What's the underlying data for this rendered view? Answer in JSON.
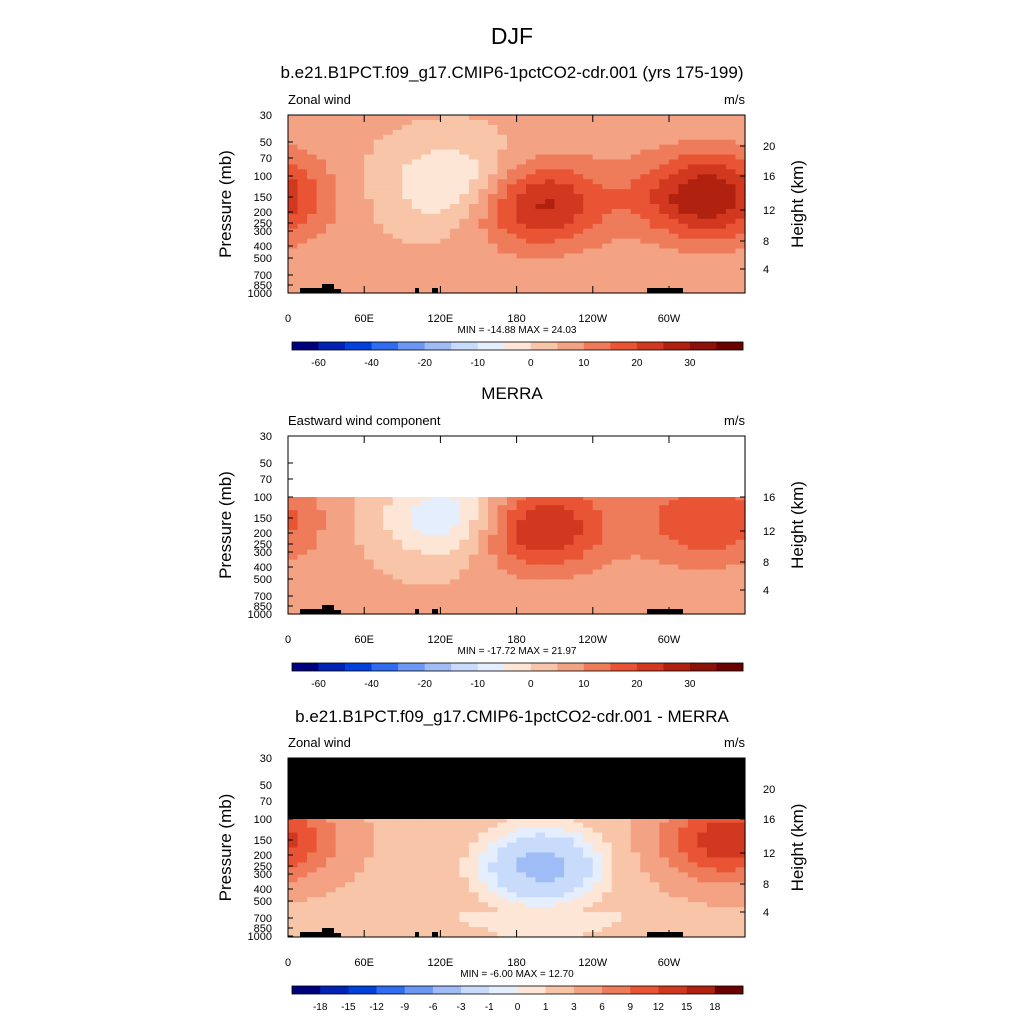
{
  "figure": {
    "season_title": "DJF"
  },
  "chart_data": [
    {
      "type": "heatmap",
      "title": "b.e21.B1PCT.f09_g17.CMIP6-1pctCO2-cdr.001 (yrs 175-199)",
      "left_label": "Zonal wind",
      "units": "m/s",
      "ylabel": "Pressure (mb)",
      "ylabel_right": "Height (km)",
      "y_ticks": [
        "30",
        "50",
        "70",
        "100",
        "150",
        "200",
        "250",
        "300",
        "400",
        "500",
        "700",
        "850",
        "1000"
      ],
      "y_right_ticks": [
        "20",
        "16",
        "12",
        "8",
        "4"
      ],
      "x_ticks": [
        "0",
        "60E",
        "120E",
        "180",
        "120W",
        "60W"
      ],
      "stats": "MIN = -14.88  MAX =  24.03",
      "min": -14.88,
      "max": 24.03,
      "colorbar_labels": [
        "-60",
        "-40",
        "-20",
        "-10",
        "0",
        "10",
        "20",
        "30"
      ],
      "features": [
        {
          "kind": "westerly jet core",
          "lon": 195,
          "pressure": 170,
          "value": 22
        },
        {
          "kind": "westerly jet core",
          "lon": 330,
          "pressure": 150,
          "value": 24
        },
        {
          "kind": "easterly region",
          "lon": 135,
          "pressure": 120,
          "value": -14
        }
      ]
    },
    {
      "type": "heatmap",
      "title": "MERRA",
      "left_label": "Eastward wind component",
      "units": "m/s",
      "ylabel": "Pressure (mb)",
      "ylabel_right": "Height (km)",
      "y_ticks": [
        "30",
        "50",
        "70",
        "100",
        "150",
        "200",
        "250",
        "300",
        "400",
        "500",
        "700",
        "850",
        "1000"
      ],
      "y_right_ticks": [
        "16",
        "12",
        "8",
        "4"
      ],
      "x_ticks": [
        "0",
        "60E",
        "120E",
        "180",
        "120W",
        "60W"
      ],
      "stats": "MIN = -17.72  MAX =  21.97",
      "min": -17.72,
      "max": 21.97,
      "colorbar_labels": [
        "-60",
        "-40",
        "-20",
        "-10",
        "0",
        "10",
        "20",
        "30"
      ],
      "features": [
        {
          "kind": "westerly jet core",
          "lon": 195,
          "pressure": 180,
          "value": 22
        },
        {
          "kind": "westerly jet core",
          "lon": 330,
          "pressure": 160,
          "value": 14
        },
        {
          "kind": "easterly region",
          "lon": 130,
          "pressure": 150,
          "value": -17
        }
      ]
    },
    {
      "type": "heatmap",
      "title": "b.e21.B1PCT.f09_g17.CMIP6-1pctCO2-cdr.001 - MERRA",
      "left_label": "Zonal wind",
      "units": "m/s",
      "ylabel": "Pressure (mb)",
      "ylabel_right": "Height (km)",
      "y_ticks": [
        "30",
        "50",
        "70",
        "100",
        "150",
        "200",
        "250",
        "300",
        "400",
        "500",
        "700",
        "850",
        "1000"
      ],
      "y_right_ticks": [
        "20",
        "16",
        "12",
        "8",
        "4"
      ],
      "x_ticks": [
        "0",
        "60E",
        "120E",
        "180",
        "120W",
        "60W"
      ],
      "stats": "MIN = -6.00  MAX =  12.70",
      "min": -6.0,
      "max": 12.7,
      "colorbar_labels": [
        "-18",
        "-15",
        "-12",
        "-9",
        "-6",
        "-3",
        "-1",
        "0",
        "1",
        "3",
        "6",
        "9",
        "12",
        "15",
        "18"
      ],
      "features": [
        {
          "kind": "negative difference",
          "lon": 200,
          "pressure": 250,
          "value": -6
        },
        {
          "kind": "positive difference",
          "lon": 345,
          "pressure": 150,
          "value": 12
        }
      ]
    }
  ]
}
